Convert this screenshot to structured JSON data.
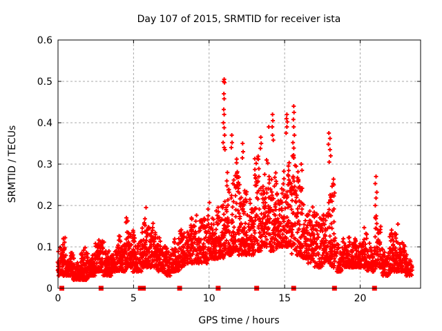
{
  "chart_data": {
    "type": "scatter",
    "title": "Day 107 of 2015, SRMTID for receiver ista",
    "xlabel": "GPS time / hours",
    "ylabel": "SRMTID / TECUs",
    "xlim": [
      0,
      24
    ],
    "ylim": [
      0,
      0.6
    ],
    "xticks": [
      0,
      5,
      10,
      15,
      20
    ],
    "xtick_labels": [
      "0",
      "5",
      "10",
      "15",
      "20"
    ],
    "yticks": [
      0,
      0.1,
      0.2,
      0.3,
      0.4,
      0.5,
      0.6
    ],
    "ytick_labels": [
      "0",
      "0.1",
      "0.2",
      "0.3",
      "0.4",
      "0.5",
      "0.6"
    ],
    "grid": true,
    "legend": "none",
    "marker": "plus",
    "marker_color": "#ff0000",
    "zero_marker": "filled-square",
    "grid_color": "#a8a8a8",
    "axis_color": "#000000",
    "background_color": "#ffffff",
    "seed": 123456,
    "density_bins": [
      [
        0.0,
        0.5,
        70,
        0.03,
        0.13
      ],
      [
        0.5,
        1.0,
        70,
        0.03,
        0.09
      ],
      [
        1.0,
        1.5,
        70,
        0.02,
        0.09
      ],
      [
        1.5,
        2.0,
        75,
        0.02,
        0.1
      ],
      [
        2.0,
        2.5,
        70,
        0.03,
        0.12
      ],
      [
        2.5,
        3.0,
        70,
        0.04,
        0.135
      ],
      [
        3.0,
        3.5,
        65,
        0.03,
        0.11
      ],
      [
        3.5,
        4.0,
        65,
        0.04,
        0.11
      ],
      [
        4.0,
        4.5,
        65,
        0.04,
        0.15
      ],
      [
        4.5,
        5.0,
        65,
        0.05,
        0.175
      ],
      [
        5.0,
        5.5,
        60,
        0.04,
        0.16
      ],
      [
        5.5,
        6.0,
        65,
        0.05,
        0.225
      ],
      [
        6.0,
        6.5,
        65,
        0.05,
        0.19
      ],
      [
        6.5,
        7.0,
        60,
        0.04,
        0.13
      ],
      [
        7.0,
        7.5,
        55,
        0.03,
        0.11
      ],
      [
        7.5,
        8.0,
        60,
        0.04,
        0.14
      ],
      [
        8.0,
        8.5,
        60,
        0.05,
        0.17
      ],
      [
        8.5,
        9.0,
        60,
        0.06,
        0.18
      ],
      [
        9.0,
        9.5,
        60,
        0.06,
        0.2
      ],
      [
        9.5,
        10.0,
        60,
        0.06,
        0.215
      ],
      [
        10.0,
        10.5,
        65,
        0.07,
        0.2
      ],
      [
        10.5,
        11.0,
        65,
        0.07,
        0.27
      ],
      [
        11.0,
        11.5,
        70,
        0.08,
        0.32
      ],
      [
        11.5,
        12.0,
        70,
        0.09,
        0.33
      ],
      [
        12.0,
        12.5,
        70,
        0.08,
        0.3
      ],
      [
        12.5,
        13.0,
        65,
        0.08,
        0.25
      ],
      [
        13.0,
        13.5,
        70,
        0.09,
        0.33
      ],
      [
        13.5,
        14.0,
        70,
        0.1,
        0.33
      ],
      [
        14.0,
        14.5,
        70,
        0.09,
        0.35
      ],
      [
        14.5,
        15.0,
        70,
        0.1,
        0.3
      ],
      [
        15.0,
        15.5,
        70,
        0.1,
        0.37
      ],
      [
        15.5,
        16.0,
        70,
        0.08,
        0.38
      ],
      [
        16.0,
        16.5,
        65,
        0.07,
        0.28
      ],
      [
        16.5,
        17.0,
        60,
        0.06,
        0.22
      ],
      [
        17.0,
        17.5,
        60,
        0.05,
        0.19
      ],
      [
        17.5,
        18.0,
        60,
        0.06,
        0.3
      ],
      [
        18.0,
        18.3,
        45,
        0.05,
        0.3
      ],
      [
        18.3,
        19.0,
        60,
        0.04,
        0.13
      ],
      [
        19.0,
        19.5,
        60,
        0.05,
        0.16
      ],
      [
        19.5,
        20.0,
        60,
        0.05,
        0.14
      ],
      [
        20.0,
        20.5,
        60,
        0.05,
        0.19
      ],
      [
        20.5,
        21.0,
        55,
        0.04,
        0.16
      ],
      [
        21.0,
        21.4,
        45,
        0.05,
        0.21
      ],
      [
        21.4,
        22.0,
        60,
        0.03,
        0.12
      ],
      [
        22.0,
        22.5,
        60,
        0.04,
        0.15
      ],
      [
        22.5,
        23.0,
        60,
        0.04,
        0.14
      ],
      [
        23.0,
        23.4,
        40,
        0.03,
        0.09
      ]
    ],
    "peak_points": [
      [
        11.0,
        0.505
      ],
      [
        10.97,
        0.5
      ],
      [
        11.02,
        0.497
      ],
      [
        10.98,
        0.47
      ],
      [
        11.0,
        0.458
      ],
      [
        10.97,
        0.432
      ],
      [
        11.0,
        0.42
      ],
      [
        10.95,
        0.4
      ],
      [
        11.0,
        0.388
      ],
      [
        11.03,
        0.37
      ],
      [
        10.93,
        0.352
      ],
      [
        11.0,
        0.34
      ],
      [
        11.05,
        0.335
      ],
      [
        11.5,
        0.37
      ],
      [
        11.52,
        0.352
      ],
      [
        11.47,
        0.34
      ],
      [
        12.22,
        0.35
      ],
      [
        12.25,
        0.33
      ],
      [
        12.2,
        0.315
      ],
      [
        13.42,
        0.365
      ],
      [
        13.45,
        0.35
      ],
      [
        13.4,
        0.338
      ],
      [
        13.95,
        0.39
      ],
      [
        14.2,
        0.42
      ],
      [
        14.22,
        0.405
      ],
      [
        14.18,
        0.39
      ],
      [
        14.2,
        0.37
      ],
      [
        14.25,
        0.358
      ],
      [
        15.15,
        0.42
      ],
      [
        15.12,
        0.41
      ],
      [
        15.18,
        0.402
      ],
      [
        15.15,
        0.39
      ],
      [
        15.1,
        0.375
      ],
      [
        15.6,
        0.44
      ],
      [
        15.62,
        0.425
      ],
      [
        15.58,
        0.408
      ],
      [
        15.6,
        0.39
      ],
      [
        15.65,
        0.37
      ],
      [
        15.55,
        0.352
      ],
      [
        16.1,
        0.3
      ],
      [
        16.15,
        0.285
      ],
      [
        17.93,
        0.375
      ],
      [
        18.0,
        0.362
      ],
      [
        17.9,
        0.348
      ],
      [
        18.0,
        0.335
      ],
      [
        18.05,
        0.32
      ],
      [
        17.95,
        0.305
      ],
      [
        21.05,
        0.27
      ],
      [
        21.0,
        0.253
      ],
      [
        21.1,
        0.232
      ],
      [
        21.05,
        0.218
      ],
      [
        21.0,
        0.2
      ],
      [
        22.5,
        0.155
      ]
    ],
    "zero_marker_x": [
      0.25,
      2.85,
      5.45,
      5.65,
      8.05,
      10.6,
      13.15,
      15.6,
      18.3,
      20.95
    ]
  }
}
